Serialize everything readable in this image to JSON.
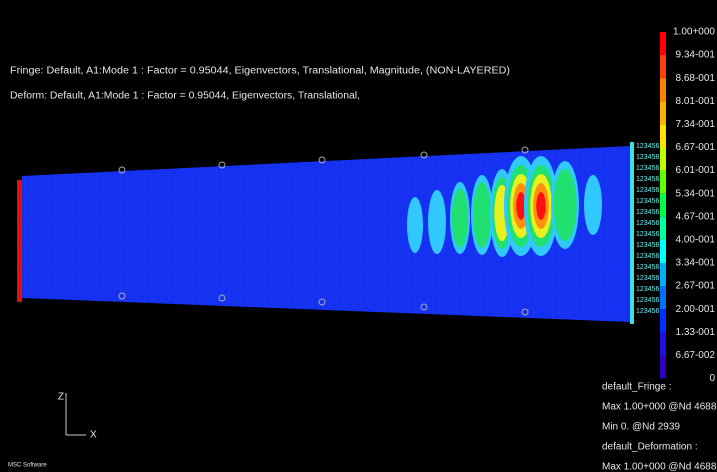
{
  "header": {
    "fringe": "Fringe: Default, A1:Mode 1 : Factor = 0.95044, Eigenvectors, Translational, Magnitude, (NON-LAYERED)",
    "deform": "Deform: Default, A1:Mode 1 : Factor = 0.95044, Eigenvectors, Translational,"
  },
  "legend": {
    "labels": [
      "1.00+000",
      "9.34-001",
      "8.68-001",
      "8.01-001",
      "7.34-001",
      "6.67-001",
      "6.01-001",
      "5.34-001",
      "4.67-001",
      "4.00-001",
      "3.34-001",
      "2.67-001",
      "2.00-001",
      "1.33-001",
      "6.67-002",
      "0"
    ]
  },
  "info": [
    "default_Fringe :",
    "Max 1.00+000 @Nd 4688",
    "Min 0. @Nd 2939",
    "default_Deformation :",
    "Max 1.00+000 @Nd 4688"
  ],
  "constraint_labels": [
    "123456",
    "123456",
    "123456",
    "123456",
    "123456",
    "123456",
    "123456",
    "123456",
    "123456",
    "123456",
    "123456",
    "123456",
    "123456",
    "123456",
    "123456",
    "123456"
  ],
  "axes": {
    "vertical": "Z",
    "horizontal": "X"
  },
  "logo": "MSC Software"
}
